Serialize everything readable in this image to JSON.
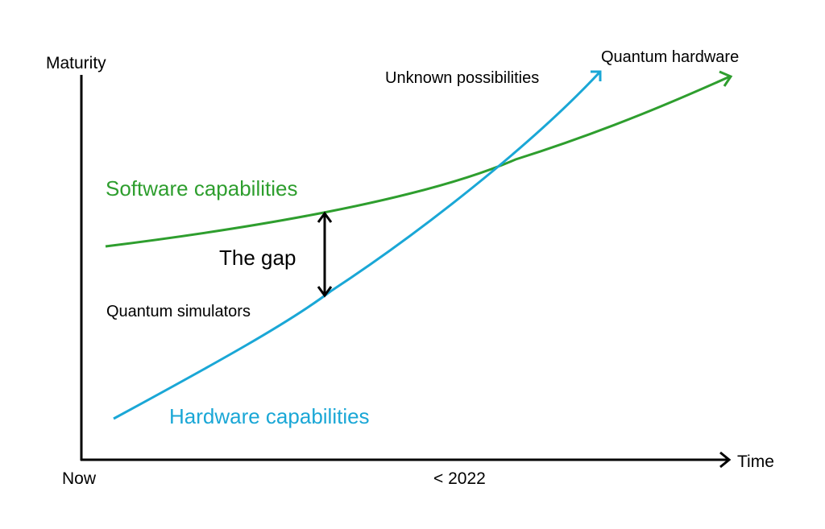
{
  "diagram": {
    "y_axis_label": "Maturity",
    "x_axis_label": "Time",
    "x_start_label": "Now",
    "x_mid_label": "< 2022",
    "software_label": "Software capabilities",
    "hardware_label": "Hardware capabilities",
    "gap_label": "The gap",
    "simulators_label": "Quantum simulators",
    "unknown_label": "Unknown possibilities",
    "quantum_hw_label": "Quantum hardware"
  },
  "colors": {
    "software": "#2e9e2e",
    "hardware": "#1aa7d6",
    "axis": "#000000",
    "text": "#000000"
  }
}
